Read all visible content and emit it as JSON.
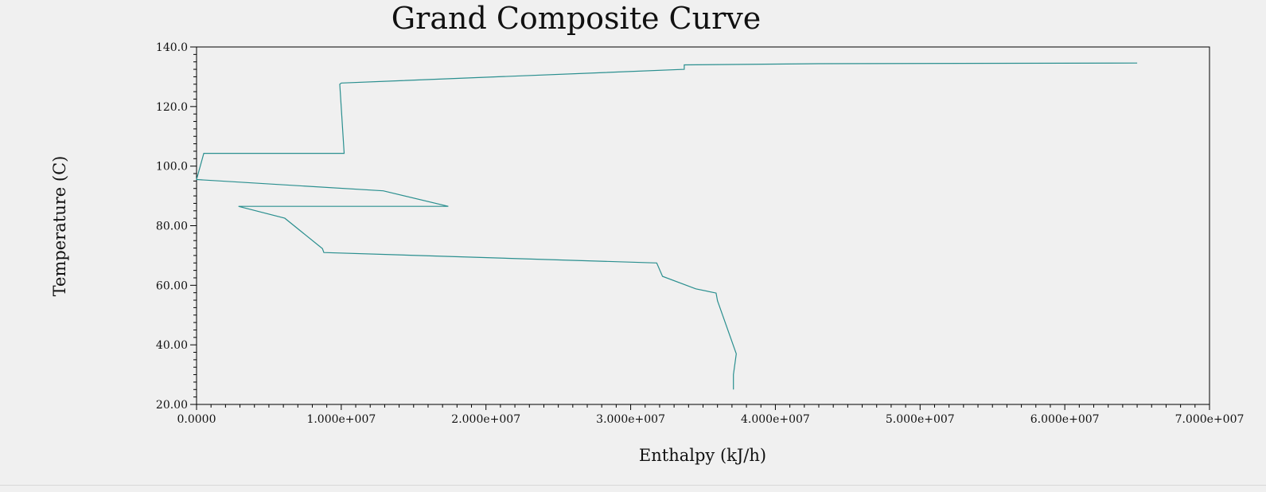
{
  "chart_data": {
    "type": "line",
    "title": "Grand Composite Curve",
    "xlabel": "Enthalpy (kJ/h)",
    "ylabel": "Temperature (C)",
    "xlim": [
      0,
      70000000
    ],
    "ylim": [
      20,
      140
    ],
    "x_ticks": [
      0,
      10000000,
      20000000,
      30000000,
      40000000,
      50000000,
      60000000,
      70000000
    ],
    "x_tick_labels": [
      "0.0000",
      "1.000e+007",
      "2.000e+007",
      "3.000e+007",
      "4.000e+007",
      "5.000e+007",
      "6.000e+007",
      "7.000e+007"
    ],
    "y_ticks": [
      20,
      40,
      60,
      80,
      100,
      120,
      140
    ],
    "y_tick_labels": [
      "20.00",
      "40.00",
      "60.00",
      "80.00",
      "100.0",
      "120.0",
      "140.0"
    ],
    "grid": false,
    "line_color": "#2a8f8f",
    "series": [
      {
        "x": [
          65000000,
          43000000,
          33700000,
          33700000,
          10000000,
          9900000,
          10200000,
          500000,
          0,
          12900000,
          17400000,
          2900000,
          6100000,
          8700000,
          8800000,
          31800000,
          32200000,
          34500000,
          35900000,
          36000000,
          37300000,
          37100000,
          37100000
        ],
        "y": [
          134.6,
          134.4,
          134.0,
          132.5,
          127.9,
          127.5,
          104.3,
          104.3,
          95.5,
          91.7,
          86.5,
          86.5,
          82.5,
          72.3,
          71.0,
          67.5,
          63.0,
          58.8,
          57.4,
          54.8,
          37.0,
          30.0,
          25.0
        ]
      }
    ]
  }
}
